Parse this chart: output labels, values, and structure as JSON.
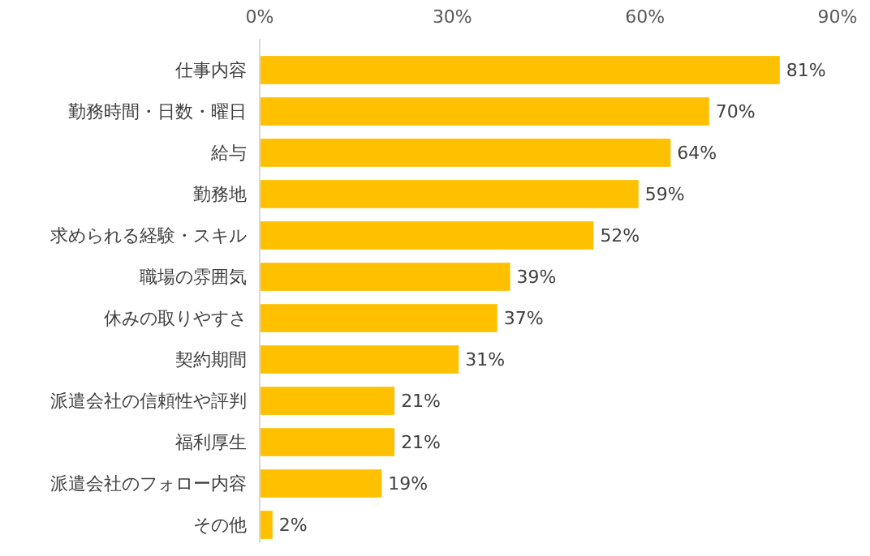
{
  "chart_data": {
    "type": "bar",
    "orientation": "horizontal",
    "categories": [
      "仕事内容",
      "勤務時間・日数・曜日",
      "給与",
      "勤務地",
      "求められる経験・スキル",
      "職場の雰囲気",
      "休みの取りやすさ",
      "契約期間",
      "派遣会社の信頼性や評判",
      "福利厚生",
      "派遣会社のフォロー内容",
      "その他"
    ],
    "values": [
      81,
      70,
      64,
      59,
      52,
      39,
      37,
      31,
      21,
      21,
      19,
      2
    ],
    "value_labels": [
      "81%",
      "70%",
      "64%",
      "59%",
      "52%",
      "39%",
      "37%",
      "31%",
      "21%",
      "21%",
      "19%",
      "2%"
    ],
    "color": "#ffc000",
    "xlim": [
      0,
      90
    ],
    "xticks": [
      {
        "value": 0,
        "label": "0%"
      },
      {
        "value": 30,
        "label": "30%"
      },
      {
        "value": 60,
        "label": "60%"
      },
      {
        "value": 90,
        "label": "90%"
      }
    ],
    "grid": false
  }
}
